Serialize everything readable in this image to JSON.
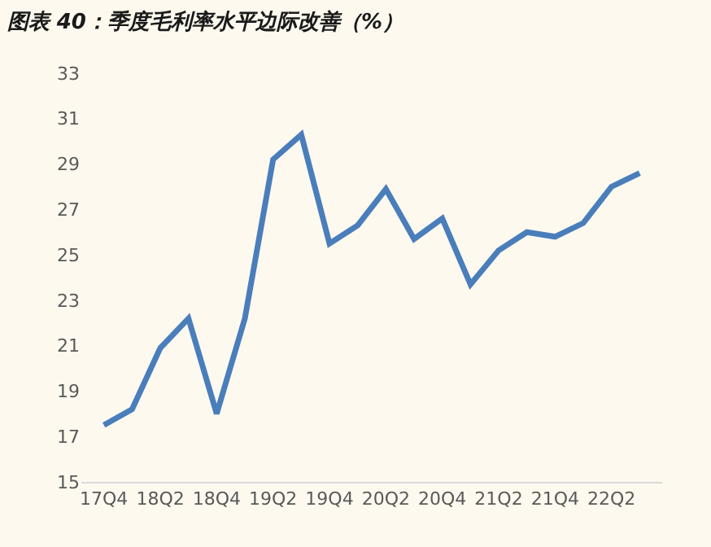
{
  "chart_data": {
    "type": "line",
    "title": "图表 40：季度毛利率水平边际改善（%）",
    "categories": [
      "17Q4",
      null,
      "18Q2",
      null,
      "18Q4",
      null,
      "19Q2",
      null,
      "19Q4",
      null,
      "20Q2",
      null,
      "20Q4",
      null,
      "21Q2",
      null,
      "21Q4",
      null,
      "22Q2",
      null
    ],
    "series": [
      {
        "color": "#4a7ebb",
        "values": [
          17.5,
          18.2,
          20.9,
          22.2,
          18.0,
          22.2,
          29.2,
          30.3,
          25.5,
          26.3,
          27.9,
          25.7,
          26.6,
          23.7,
          25.2,
          26.0,
          25.8,
          26.4,
          28.0,
          28.6
        ]
      }
    ],
    "ylim": [
      15,
      33
    ],
    "yticks": [
      15,
      17,
      19,
      21,
      23,
      25,
      27,
      29,
      31,
      33
    ],
    "grid": false,
    "legend": false,
    "marker": "none",
    "line_style": "solid"
  }
}
